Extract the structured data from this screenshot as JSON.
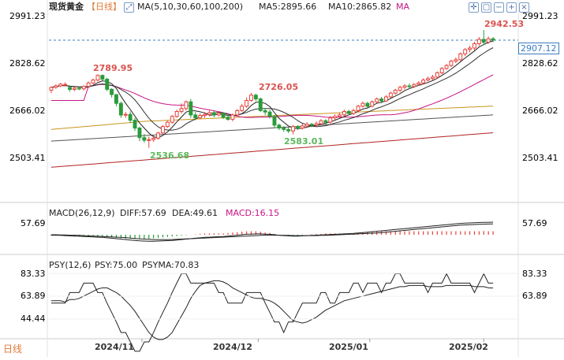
{
  "header": {
    "symbol": "现货黄金",
    "period": "【日线】",
    "ma_label": "MA(5,10,30,60,100,200)",
    "ma5": "MA5:2895.66",
    "ma10": "MA10:2865.82",
    "ma_more": "MA"
  },
  "toolbar": {
    "icons": [
      "crosshair-icon",
      "fit-icon",
      "zoom-out-icon",
      "zoom-in-icon",
      "close-icon"
    ]
  },
  "macd": {
    "label": "MACD(26,12,9)",
    "diff": "DIFF:57.69",
    "dea": "DEA:49.61",
    "macd": "MACD:16.15",
    "tick": "57.69"
  },
  "psy": {
    "label": "PSY(12,6)",
    "psy": "PSY:75.00",
    "psyma": "PSYMA:70.83",
    "ticks": [
      "83.33",
      "63.89",
      "44.44"
    ]
  },
  "footer": {
    "period_tab": "日线"
  },
  "price_axis": {
    "ticks": [
      "2991.23",
      "2828.62",
      "2666.02",
      "2503.41"
    ],
    "current": "2907.12"
  },
  "annotations": {
    "high": "2942.53",
    "a1": "2789.95",
    "a2": "2726.05",
    "l1": "2536.68",
    "l2": "2583.01"
  },
  "x_labels": [
    "2024/11",
    "2024/12",
    "2025/01",
    "2025/02"
  ],
  "colors": {
    "up": "#e8413a",
    "down": "#2a9b3a",
    "ma5": "#222222",
    "ma10": "#333333",
    "ma30": "#c71585",
    "ma60": "#c8951c",
    "ma100": "#555555",
    "ma200": "#b22222",
    "dif": "#222222",
    "dea": "#222222",
    "psy": "#222222",
    "hilabel": "#d9534f",
    "lolabel": "#5cb85c",
    "current": "#3a7bbf"
  },
  "chart_data": [
    {
      "type": "candlestick",
      "title": "现货黄金 日线",
      "ylim": [
        2430,
        3010
      ],
      "annotations": [
        {
          "x": 19,
          "text": "2789.95",
          "kind": "high"
        },
        {
          "x": 45,
          "text": "2726.05",
          "kind": "high"
        },
        {
          "x": 21,
          "text": "2536.68",
          "kind": "low"
        },
        {
          "x": 52,
          "text": "2583.01",
          "kind": "low"
        },
        {
          "x": 93,
          "text": "2942.53",
          "kind": "high"
        }
      ],
      "candles": [
        [
          0,
          2735,
          2745,
          2725,
          2748
        ],
        [
          1,
          2745,
          2750,
          2740,
          2755
        ],
        [
          2,
          2750,
          2756,
          2745,
          2760
        ],
        [
          3,
          2755,
          2755,
          2748,
          2762
        ],
        [
          4,
          2745,
          2738,
          2730,
          2752
        ],
        [
          5,
          2738,
          2742,
          2732,
          2748
        ],
        [
          6,
          2742,
          2740,
          2735,
          2747
        ],
        [
          7,
          2740,
          2748,
          2734,
          2752
        ],
        [
          8,
          2748,
          2760,
          2744,
          2765
        ],
        [
          9,
          2760,
          2770,
          2755,
          2775
        ],
        [
          10,
          2770,
          2786,
          2765,
          2790
        ],
        [
          11,
          2786,
          2773,
          2768,
          2789
        ],
        [
          12,
          2773,
          2738,
          2732,
          2778
        ],
        [
          13,
          2738,
          2720,
          2710,
          2742
        ],
        [
          14,
          2720,
          2690,
          2680,
          2722
        ],
        [
          15,
          2690,
          2650,
          2640,
          2696
        ],
        [
          16,
          2650,
          2652,
          2640,
          2660
        ],
        [
          17,
          2652,
          2632,
          2622,
          2662
        ],
        [
          18,
          2632,
          2605,
          2595,
          2640
        ],
        [
          19,
          2605,
          2572,
          2560,
          2610
        ],
        [
          20,
          2572,
          2563,
          2555,
          2585
        ],
        [
          21,
          2563,
          2565,
          2537,
          2575
        ],
        [
          22,
          2565,
          2570,
          2558,
          2580
        ],
        [
          23,
          2570,
          2588,
          2565,
          2592
        ],
        [
          24,
          2588,
          2610,
          2584,
          2615
        ],
        [
          25,
          2610,
          2625,
          2605,
          2630
        ],
        [
          26,
          2625,
          2645,
          2620,
          2650
        ],
        [
          27,
          2645,
          2662,
          2640,
          2668
        ],
        [
          28,
          2662,
          2672,
          2655,
          2690
        ],
        [
          29,
          2672,
          2695,
          2665,
          2700
        ],
        [
          30,
          2695,
          2650,
          2640,
          2705
        ],
        [
          31,
          2650,
          2640,
          2632,
          2660
        ],
        [
          32,
          2640,
          2648,
          2635,
          2655
        ],
        [
          33,
          2648,
          2652,
          2640,
          2660
        ],
        [
          34,
          2652,
          2658,
          2645,
          2665
        ],
        [
          35,
          2658,
          2650,
          2642,
          2664
        ],
        [
          36,
          2650,
          2656,
          2645,
          2662
        ],
        [
          37,
          2656,
          2642,
          2636,
          2660
        ],
        [
          38,
          2642,
          2635,
          2630,
          2650
        ],
        [
          39,
          2635,
          2650,
          2628,
          2655
        ],
        [
          40,
          2650,
          2665,
          2645,
          2670
        ],
        [
          41,
          2665,
          2680,
          2660,
          2688
        ],
        [
          42,
          2680,
          2700,
          2675,
          2710
        ],
        [
          43,
          2700,
          2718,
          2695,
          2726
        ],
        [
          44,
          2718,
          2705,
          2698,
          2723
        ],
        [
          45,
          2705,
          2665,
          2660,
          2710
        ],
        [
          46,
          2665,
          2660,
          2650,
          2672
        ],
        [
          47,
          2660,
          2645,
          2638,
          2668
        ],
        [
          48,
          2645,
          2615,
          2605,
          2650
        ],
        [
          49,
          2615,
          2605,
          2598,
          2620
        ],
        [
          50,
          2605,
          2600,
          2592,
          2612
        ],
        [
          51,
          2600,
          2595,
          2588,
          2608
        ],
        [
          52,
          2595,
          2610,
          2583,
          2615
        ],
        [
          53,
          2610,
          2605,
          2598,
          2615
        ],
        [
          54,
          2605,
          2612,
          2600,
          2620
        ],
        [
          55,
          2612,
          2618,
          2605,
          2625
        ],
        [
          56,
          2618,
          2615,
          2608,
          2623
        ],
        [
          57,
          2615,
          2620,
          2610,
          2628
        ],
        [
          58,
          2620,
          2630,
          2615,
          2636
        ],
        [
          59,
          2630,
          2625,
          2618,
          2635
        ],
        [
          60,
          2625,
          2640,
          2620,
          2645
        ],
        [
          61,
          2640,
          2645,
          2632,
          2652
        ],
        [
          62,
          2645,
          2650,
          2640,
          2658
        ],
        [
          63,
          2650,
          2662,
          2645,
          2668
        ],
        [
          64,
          2662,
          2655,
          2648,
          2668
        ],
        [
          65,
          2655,
          2665,
          2650,
          2672
        ],
        [
          66,
          2665,
          2680,
          2660,
          2685
        ],
        [
          67,
          2680,
          2690,
          2675,
          2696
        ],
        [
          68,
          2690,
          2680,
          2674,
          2695
        ],
        [
          69,
          2680,
          2695,
          2676,
          2700
        ],
        [
          70,
          2695,
          2705,
          2690,
          2710
        ],
        [
          71,
          2705,
          2698,
          2690,
          2712
        ],
        [
          72,
          2698,
          2712,
          2695,
          2718
        ],
        [
          73,
          2712,
          2725,
          2708,
          2730
        ],
        [
          74,
          2725,
          2735,
          2720,
          2740
        ],
        [
          75,
          2735,
          2745,
          2728,
          2750
        ],
        [
          76,
          2745,
          2750,
          2738,
          2756
        ],
        [
          77,
          2750,
          2748,
          2740,
          2758
        ],
        [
          78,
          2748,
          2755,
          2742,
          2760
        ],
        [
          79,
          2755,
          2760,
          2750,
          2766
        ],
        [
          80,
          2760,
          2770,
          2755,
          2776
        ],
        [
          81,
          2770,
          2775,
          2765,
          2782
        ],
        [
          82,
          2775,
          2780,
          2768,
          2788
        ],
        [
          83,
          2780,
          2795,
          2775,
          2800
        ],
        [
          84,
          2795,
          2810,
          2790,
          2815
        ],
        [
          85,
          2810,
          2820,
          2805,
          2826
        ],
        [
          86,
          2820,
          2835,
          2815,
          2840
        ],
        [
          87,
          2835,
          2840,
          2828,
          2848
        ],
        [
          88,
          2840,
          2860,
          2835,
          2865
        ],
        [
          89,
          2860,
          2875,
          2852,
          2880
        ],
        [
          90,
          2875,
          2880,
          2865,
          2888
        ],
        [
          91,
          2880,
          2895,
          2872,
          2902
        ],
        [
          92,
          2895,
          2910,
          2888,
          2918
        ],
        [
          93,
          2910,
          2900,
          2890,
          2942
        ],
        [
          94,
          2900,
          2912,
          2895,
          2920
        ],
        [
          95,
          2912,
          2907,
          2900,
          2918
        ]
      ]
    },
    {
      "type": "line",
      "title": "MACD(26,12,9)",
      "series": [
        {
          "name": "DIFF",
          "values": [
            -2,
            -2,
            -3,
            -4,
            -5,
            -6,
            -7,
            -8,
            -9,
            -10,
            -11,
            -12,
            -14,
            -16,
            -18,
            -20,
            -22,
            -24,
            -26,
            -28,
            -29,
            -30,
            -30,
            -29,
            -28,
            -27,
            -26,
            -24,
            -22,
            -20,
            -18,
            -16,
            -14,
            -12,
            -11,
            -10,
            -9,
            -8,
            -6,
            -4,
            -2,
            0,
            2,
            3,
            4,
            4,
            3,
            2,
            0,
            -2,
            -4,
            -5,
            -6,
            -6,
            -5,
            -4,
            -3,
            -2,
            -1,
            0,
            1,
            2,
            3,
            4,
            5,
            6,
            8,
            10,
            12,
            14,
            16,
            18,
            20,
            22,
            24,
            26,
            28,
            30,
            32,
            34,
            36,
            38,
            40,
            42,
            44,
            46,
            48,
            50,
            52,
            53,
            54,
            55,
            56,
            57,
            57,
            57.69
          ]
        },
        {
          "name": "DEA",
          "values": [
            0,
            0,
            -1,
            -1,
            -2,
            -2,
            -3,
            -4,
            -5,
            -6,
            -7,
            -8,
            -9,
            -10,
            -11,
            -12,
            -13,
            -15,
            -17,
            -19,
            -20,
            -21,
            -22,
            -22,
            -22,
            -22,
            -22,
            -21,
            -20,
            -19,
            -18,
            -17,
            -16,
            -15,
            -14,
            -13,
            -12,
            -11,
            -10,
            -9,
            -8,
            -7,
            -6,
            -5,
            -4,
            -3,
            -2,
            -2,
            -2,
            -2,
            -3,
            -3,
            -4,
            -4,
            -4,
            -4,
            -4,
            -4,
            -3,
            -3,
            -2,
            -1,
            0,
            1,
            2,
            3,
            4,
            5,
            6,
            7,
            8,
            10,
            12,
            14,
            16,
            18,
            20,
            22,
            24,
            26,
            28,
            30,
            32,
            34,
            36,
            38,
            40,
            42,
            44,
            45,
            46,
            47,
            48,
            48.5,
            49,
            49.61
          ]
        },
        {
          "name": "MACD",
          "values": [
            -4,
            -4,
            -4,
            -6,
            -6,
            -8,
            -8,
            -8,
            -8,
            -8,
            -8,
            -8,
            -10,
            -12,
            -14,
            -16,
            -18,
            -18,
            -18,
            -18,
            -18,
            -18,
            -16,
            -14,
            -12,
            -10,
            -8,
            -6,
            -4,
            -2,
            0,
            2,
            4,
            6,
            6,
            6,
            6,
            6,
            8,
            10,
            12,
            14,
            16,
            16,
            16,
            14,
            10,
            8,
            4,
            0,
            -2,
            -4,
            -4,
            -4,
            -2,
            0,
            2,
            4,
            4,
            6,
            6,
            6,
            6,
            6,
            6,
            6,
            8,
            10,
            12,
            14,
            16,
            16,
            16,
            16,
            16,
            16,
            16,
            16,
            16,
            16,
            16,
            16,
            16,
            16,
            16,
            16,
            16,
            16,
            16,
            16,
            16,
            16,
            16,
            17,
            16,
            16.15
          ]
        }
      ]
    },
    {
      "type": "line",
      "title": "PSY(12,6)",
      "series": [
        {
          "name": "PSY",
          "values": [
            58,
            58,
            58,
            58,
            67,
            67,
            67,
            75,
            75,
            75,
            67,
            67,
            58,
            50,
            42,
            33,
            33,
            25,
            17,
            17,
            25,
            25,
            33,
            42,
            50,
            58,
            67,
            75,
            83,
            83,
            75,
            75,
            75,
            75,
            75,
            75,
            67,
            67,
            58,
            58,
            58,
            58,
            67,
            67,
            67,
            67,
            58,
            50,
            42,
            42,
            33,
            42,
            42,
            50,
            58,
            58,
            58,
            58,
            67,
            67,
            58,
            58,
            67,
            67,
            67,
            75,
            75,
            67,
            75,
            75,
            75,
            67,
            75,
            75,
            83,
            83,
            75,
            75,
            75,
            75,
            75,
            67,
            75,
            75,
            75,
            83,
            75,
            75,
            75,
            75,
            75,
            67,
            75,
            83,
            75,
            75
          ]
        },
        {
          "name": "PSYMA",
          "values": [
            60,
            60,
            60,
            59,
            61,
            61,
            62,
            64,
            66,
            68,
            70,
            71,
            71,
            69,
            67,
            64,
            60,
            56,
            51,
            45,
            39,
            33,
            29,
            27,
            27,
            29,
            33,
            40,
            47,
            54,
            62,
            68,
            73,
            75,
            76,
            77,
            77,
            76,
            74,
            71,
            69,
            67,
            65,
            63,
            62,
            62,
            61,
            60,
            58,
            55,
            51,
            47,
            43,
            42,
            41,
            42,
            44,
            46,
            49,
            52,
            54,
            56,
            58,
            60,
            61,
            62,
            63,
            64,
            65,
            66,
            67,
            68,
            69,
            70,
            71,
            72,
            72,
            73,
            73,
            73,
            73,
            72,
            72,
            72,
            72,
            73,
            73,
            73,
            73,
            73,
            73,
            72,
            72,
            72,
            71,
            70.83
          ]
        }
      ]
    }
  ]
}
